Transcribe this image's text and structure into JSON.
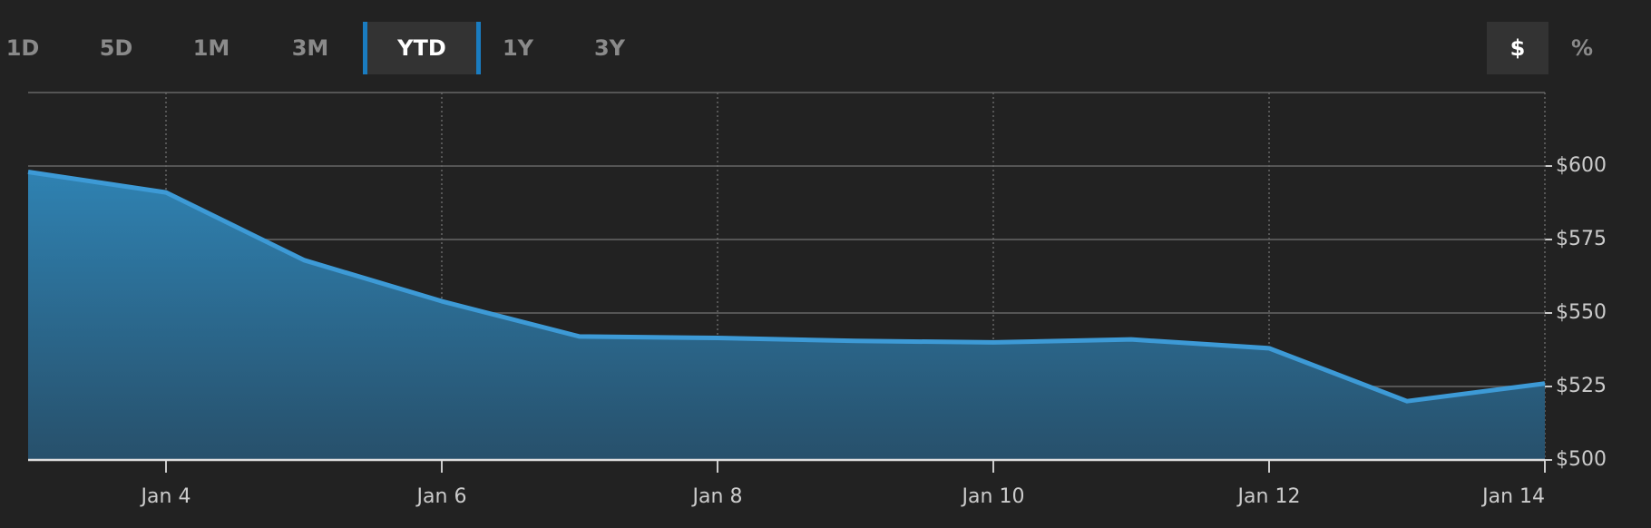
{
  "ui": {
    "ranges": [
      "1D",
      "5D",
      "1M",
      "3M",
      "YTD",
      "1Y",
      "3Y"
    ],
    "active_range": 4,
    "units": [
      "$",
      "%"
    ],
    "active_unit": 0
  },
  "chart_data": {
    "type": "area",
    "x": [
      "Jan 3",
      "Jan 4",
      "Jan 5",
      "Jan 6",
      "Jan 7",
      "Jan 8",
      "Jan 9",
      "Jan 10",
      "Jan 11",
      "Jan 12",
      "Jan 13",
      "Jan 14"
    ],
    "series": [
      {
        "color": "#3d9ad6",
        "values": [
          598,
          591,
          568,
          554,
          542,
          541.5,
          540.5,
          540,
          541,
          538,
          520,
          526
        ]
      }
    ],
    "xticks": [
      "Jan 4",
      "Jan 6",
      "Jan 8",
      "Jan 10",
      "Jan 12",
      "Jan 14"
    ],
    "ylim": [
      500,
      625
    ],
    "yticks": [
      {
        "value": 500,
        "label": "$500"
      },
      {
        "value": 525,
        "label": "$525"
      },
      {
        "value": 550,
        "label": "$550"
      },
      {
        "value": 575,
        "label": "$575"
      },
      {
        "value": 600,
        "label": "$600"
      }
    ],
    "grid": true
  }
}
